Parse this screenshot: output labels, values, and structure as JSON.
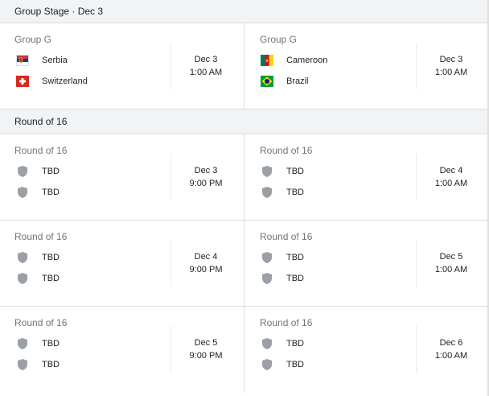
{
  "sections": {
    "group_stage": {
      "header": "Group Stage · Dec 3",
      "matches": [
        {
          "label": "Group G",
          "teams": [
            {
              "name": "Serbia",
              "icon": "serbia-flag-icon"
            },
            {
              "name": "Switzerland",
              "icon": "switzerland-flag-icon"
            }
          ],
          "date": "Dec 3",
          "time": "1:00 AM"
        },
        {
          "label": "Group G",
          "teams": [
            {
              "name": "Cameroon",
              "icon": "cameroon-flag-icon"
            },
            {
              "name": "Brazil",
              "icon": "brazil-flag-icon"
            }
          ],
          "date": "Dec 3",
          "time": "1:00 AM"
        }
      ]
    },
    "round_of_16": {
      "header": "Round of 16",
      "matches": [
        {
          "label": "Round of 16",
          "teams": [
            {
              "name": "TBD",
              "icon": "shield-icon"
            },
            {
              "name": "TBD",
              "icon": "shield-icon"
            }
          ],
          "date": "Dec 3",
          "time": "9:00 PM"
        },
        {
          "label": "Round of 16",
          "teams": [
            {
              "name": "TBD",
              "icon": "shield-icon"
            },
            {
              "name": "TBD",
              "icon": "shield-icon"
            }
          ],
          "date": "Dec 4",
          "time": "1:00 AM"
        },
        {
          "label": "Round of 16",
          "teams": [
            {
              "name": "TBD",
              "icon": "shield-icon"
            },
            {
              "name": "TBD",
              "icon": "shield-icon"
            }
          ],
          "date": "Dec 4",
          "time": "9:00 PM"
        },
        {
          "label": "Round of 16",
          "teams": [
            {
              "name": "TBD",
              "icon": "shield-icon"
            },
            {
              "name": "TBD",
              "icon": "shield-icon"
            }
          ],
          "date": "Dec 5",
          "time": "1:00 AM"
        },
        {
          "label": "Round of 16",
          "teams": [
            {
              "name": "TBD",
              "icon": "shield-icon"
            },
            {
              "name": "TBD",
              "icon": "shield-icon"
            }
          ],
          "date": "Dec 5",
          "time": "9:00 PM"
        },
        {
          "label": "Round of 16",
          "teams": [
            {
              "name": "TBD",
              "icon": "shield-icon"
            },
            {
              "name": "TBD",
              "icon": "shield-icon"
            }
          ],
          "date": "Dec 6",
          "time": "1:00 AM"
        }
      ]
    }
  },
  "colors": {
    "header_bg": "#f1f3f4",
    "border": "#dadce0",
    "label_text": "#70757a",
    "shield": "#9aa0a6"
  }
}
